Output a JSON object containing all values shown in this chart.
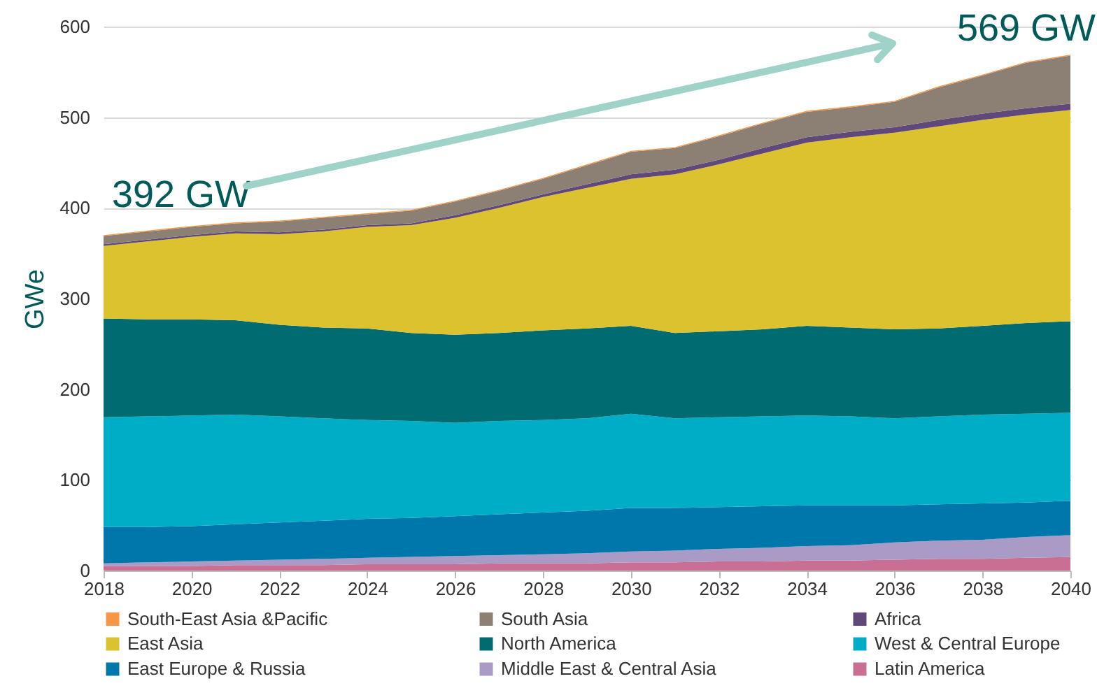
{
  "chart_data": {
    "type": "area",
    "stacked": true,
    "ylabel": "GWe",
    "x": [
      2018,
      2019,
      2020,
      2021,
      2022,
      2023,
      2024,
      2025,
      2026,
      2027,
      2028,
      2029,
      2030,
      2031,
      2032,
      2033,
      2034,
      2035,
      2036,
      2037,
      2038,
      2039,
      2040
    ],
    "xlim": [
      2018,
      2040
    ],
    "xticks": [
      2018,
      2020,
      2022,
      2024,
      2026,
      2028,
      2030,
      2032,
      2034,
      2036,
      2038,
      2040
    ],
    "ylim": [
      0,
      600
    ],
    "yticks": [
      0,
      100,
      200,
      300,
      400,
      500,
      600
    ],
    "grid": "y",
    "legend": "bottom",
    "annotations": [
      "392 GW",
      "569 GW"
    ],
    "series": [
      {
        "name": "Latin America",
        "color": "#c86f93",
        "values": [
          5,
          5,
          5,
          6,
          6,
          6,
          7,
          7,
          7,
          8,
          8,
          8,
          9,
          9,
          10,
          10,
          11,
          11,
          12,
          13,
          13,
          14,
          15
        ]
      },
      {
        "name": "Middle East & Central Asia",
        "color": "#a99bc6",
        "values": [
          3,
          4,
          5,
          5,
          6,
          7,
          7,
          8,
          9,
          9,
          10,
          11,
          12,
          13,
          14,
          15,
          16,
          17,
          19,
          20,
          21,
          23,
          24
        ]
      },
      {
        "name": "East Europe & Russia",
        "color": "#0077aa",
        "values": [
          40,
          39,
          39,
          40,
          41,
          42,
          43,
          43,
          44,
          45,
          46,
          47,
          48,
          47,
          46,
          46,
          45,
          44,
          41,
          40,
          40,
          38,
          38
        ]
      },
      {
        "name": "West & Central Europe",
        "color": "#00adc6",
        "values": [
          121,
          122,
          122,
          121,
          117,
          113,
          109,
          107,
          103,
          103,
          102,
          102,
          104,
          99,
          99,
          99,
          99,
          98,
          96,
          97,
          98,
          98,
          97
        ]
      },
      {
        "name": "North America",
        "color": "#006b70",
        "values": [
          109,
          107,
          106,
          104,
          101,
          100,
          101,
          97,
          97,
          97,
          99,
          99,
          97,
          94,
          95,
          96,
          99,
          98,
          98,
          97,
          98,
          100,
          101
        ]
      },
      {
        "name": "East Asia",
        "color": "#dcc22e",
        "values": [
          80,
          86,
          91,
          96,
          100,
          106,
          112,
          119,
          129,
          138,
          147,
          155,
          162,
          175,
          184,
          194,
          202,
          210,
          217,
          223,
          227,
          230,
          233
        ]
      },
      {
        "name": "Africa",
        "color": "#60497a",
        "values": [
          2,
          2,
          2,
          2,
          2,
          2,
          2,
          2,
          3,
          3,
          3,
          4,
          5,
          5,
          5,
          6,
          6,
          6,
          6,
          7,
          7,
          7,
          7
        ]
      },
      {
        "name": "South Asia",
        "color": "#8c7f73",
        "values": [
          9,
          9,
          9,
          9,
          12,
          13,
          12,
          14,
          15,
          16,
          17,
          21,
          25,
          24,
          26,
          27,
          28,
          27,
          28,
          36,
          42,
          50,
          53
        ]
      },
      {
        "name": "South-East Asia &Pacific",
        "color": "#f79646",
        "values": [
          1,
          1,
          1,
          1,
          1,
          1,
          1,
          1,
          1,
          1,
          1,
          1,
          1,
          1,
          1,
          1,
          1,
          1,
          1,
          1,
          1,
          1,
          1
        ]
      }
    ]
  }
}
